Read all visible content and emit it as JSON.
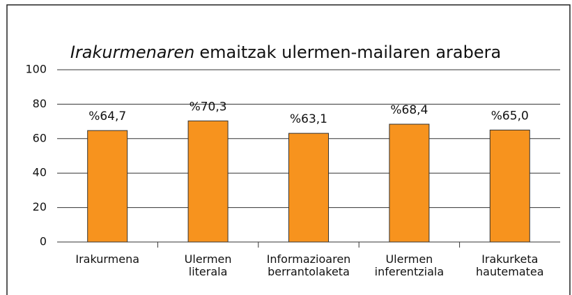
{
  "chart_data": {
    "type": "bar",
    "title": {
      "italic": "Irakurmenaren",
      "rest": "emaitzak ulermen-mailaren arabera"
    },
    "categories": [
      [
        "Irakurmena"
      ],
      [
        "Ulermen",
        "literala"
      ],
      [
        "Informazioaren",
        "berrantolaketa"
      ],
      [
        "Ulermen",
        "inferentziala"
      ],
      [
        "Irakurketa",
        "hautematea"
      ]
    ],
    "values": [
      64.7,
      70.3,
      63.1,
      68.4,
      65.0
    ],
    "value_labels": [
      "%64,7",
      "%70,3",
      "%63,1",
      "%68,4",
      "%65,0"
    ],
    "color": "#f7931e",
    "ylim": [
      0,
      100
    ],
    "yticks": [
      0,
      20,
      40,
      60,
      80,
      100
    ],
    "grid": true
  }
}
